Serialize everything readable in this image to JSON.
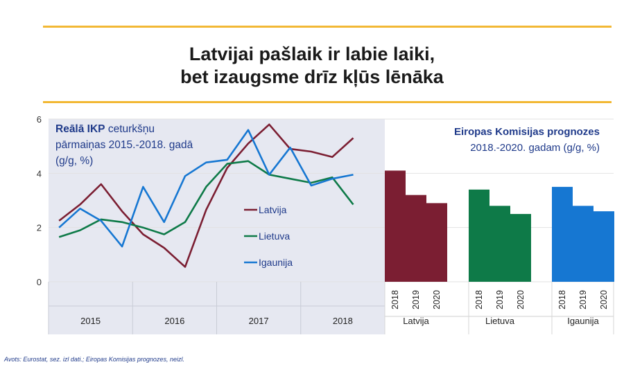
{
  "page": {
    "title_line1": "Latvijai pašlaik ir labie laiki,",
    "title_line2": "bet izaugsme drīz kļūs lēnāka",
    "source": "Avots: Eurostat, sez. izl dati.; Eiropas Komisijas prognozes, neizl."
  },
  "colors": {
    "latvija": "#7B1E32",
    "lietuva": "#0E7A48",
    "igaunija": "#1677D2",
    "panel": "#E6E8F1",
    "accent": "#F2B834"
  },
  "chart_data": [
    {
      "type": "line",
      "title_bold": "Reālā IKP",
      "title_rest": " ceturkšņu",
      "title_line2": "pārmaiņas 2015.-2018. gadā",
      "title_line3": "(g/g, %)",
      "ylim": [
        0,
        6
      ],
      "yticks": [
        0,
        2,
        4,
        6
      ],
      "ytick_labels": [
        "0",
        "2",
        "4",
        "6"
      ],
      "year_labels": [
        "2015",
        "2016",
        "2017",
        "2018"
      ],
      "legend_position": "center",
      "x": [
        "2015Q1",
        "2015Q2",
        "2015Q3",
        "2015Q4",
        "2016Q1",
        "2016Q2",
        "2016Q3",
        "2016Q4",
        "2017Q1",
        "2017Q2",
        "2017Q3",
        "2017Q4",
        "2018Q1",
        "2018Q2",
        "2018Q3",
        "2018Q4"
      ],
      "series": [
        {
          "name": "Latvija",
          "values": [
            2.25,
            2.85,
            3.6,
            2.6,
            1.75,
            1.25,
            0.55,
            2.65,
            4.2,
            5.1,
            5.8,
            4.9,
            4.8,
            4.6,
            5.3,
            null
          ]
        },
        {
          "name": "Lietuva",
          "values": [
            1.65,
            1.9,
            2.3,
            2.2,
            2.0,
            1.75,
            2.2,
            3.5,
            4.35,
            4.45,
            3.95,
            3.8,
            3.65,
            3.85,
            2.85,
            null
          ]
        },
        {
          "name": "Igaunija",
          "values": [
            2.0,
            2.7,
            2.25,
            1.3,
            3.5,
            2.2,
            3.9,
            4.4,
            4.5,
            5.6,
            3.95,
            4.95,
            3.55,
            3.8,
            3.95,
            null
          ]
        }
      ]
    },
    {
      "type": "bar",
      "title": "Eiropas Komisijas prognozes",
      "subtitle": "2018.-2020. gadam (g/g, %)",
      "ylim": [
        0,
        6
      ],
      "groups": [
        {
          "name": "Latvija",
          "categories": [
            "2018",
            "2019",
            "2020"
          ],
          "values": [
            4.1,
            3.2,
            2.9
          ]
        },
        {
          "name": "Lietuva",
          "categories": [
            "2018",
            "2019",
            "2020"
          ],
          "values": [
            3.4,
            2.8,
            2.5
          ]
        },
        {
          "name": "Igaunija",
          "categories": [
            "2018",
            "2019",
            "2020"
          ],
          "values": [
            3.5,
            2.8,
            2.6
          ]
        }
      ]
    }
  ]
}
